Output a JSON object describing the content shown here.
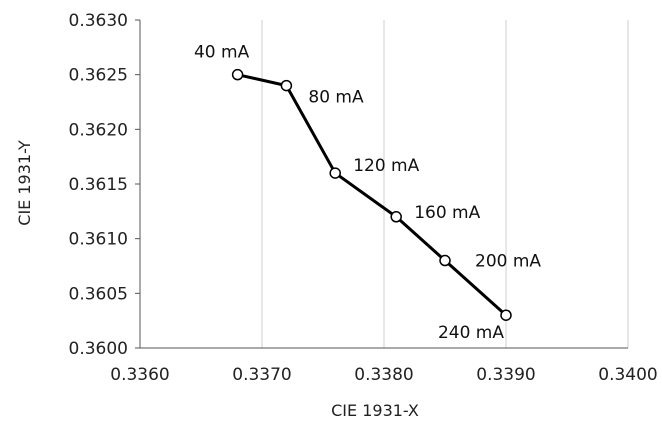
{
  "chart_data": {
    "type": "scatter",
    "title": "",
    "xlabel": "CIE 1931-X",
    "ylabel": "CIE 1931-Y",
    "xlim": [
      0.336,
      0.34
    ],
    "ylim": [
      0.36,
      0.363
    ],
    "x_ticks": [
      0.336,
      0.337,
      0.338,
      0.339,
      0.34
    ],
    "x_tick_labels": [
      "0.3360",
      "0.3370",
      "0.3380",
      "0.3390",
      "0.3400"
    ],
    "y_ticks": [
      0.36,
      0.3605,
      0.361,
      0.3615,
      0.362,
      0.3625,
      0.363
    ],
    "y_tick_labels": [
      "0.3600",
      "0.3605",
      "0.3610",
      "0.3615",
      "0.3620",
      "0.3625",
      "0.3630"
    ],
    "grid": "vertical",
    "series": [
      {
        "marker": "open-circle",
        "line": true,
        "color": "#000000",
        "points": [
          {
            "x": 0.3368,
            "y": 0.3625,
            "label": "40 mA"
          },
          {
            "x": 0.3372,
            "y": 0.3624,
            "label": "80 mA"
          },
          {
            "x": 0.3376,
            "y": 0.3616,
            "label": "120 mA"
          },
          {
            "x": 0.3381,
            "y": 0.3612,
            "label": "160 mA"
          },
          {
            "x": 0.3385,
            "y": 0.3608,
            "label": "200 mA"
          },
          {
            "x": 0.339,
            "y": 0.3603,
            "label": "240 mA"
          }
        ]
      }
    ]
  }
}
